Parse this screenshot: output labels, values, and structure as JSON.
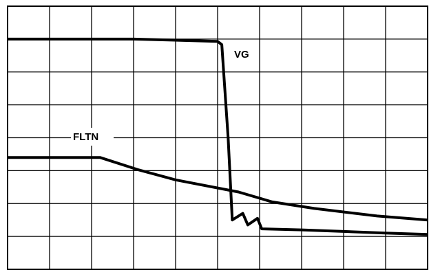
{
  "chart_data": {
    "type": "line",
    "title": "",
    "xlabel": "",
    "ylabel": "",
    "xlim": [
      0,
      10
    ],
    "ylim": [
      0,
      8
    ],
    "grid": true,
    "legend": "none",
    "series": [
      {
        "name": "VG",
        "color": "#000000",
        "points": [
          [
            0,
            7
          ],
          [
            3,
            7
          ],
          [
            5,
            6.93
          ],
          [
            5.1,
            6.83
          ],
          [
            5.25,
            4
          ],
          [
            5.35,
            1.5
          ],
          [
            5.6,
            1.7
          ],
          [
            5.72,
            1.35
          ],
          [
            5.95,
            1.55
          ],
          [
            6.05,
            1.23
          ],
          [
            7,
            1.2
          ],
          [
            8,
            1.15
          ],
          [
            9,
            1.1
          ],
          [
            10,
            1.06
          ]
        ]
      },
      {
        "name": "FLTN",
        "color": "#000000",
        "points": [
          [
            0,
            3.4
          ],
          [
            2.2,
            3.4
          ],
          [
            3.1,
            3.03
          ],
          [
            4,
            2.72
          ],
          [
            5.5,
            2.35
          ],
          [
            6.3,
            2.05
          ],
          [
            7.3,
            1.85
          ],
          [
            8.8,
            1.62
          ],
          [
            10,
            1.5
          ]
        ]
      }
    ],
    "annotations": [
      {
        "text": "VG",
        "x": 5.8,
        "y": 6.55
      },
      {
        "text": "FLTN",
        "x": 1.92,
        "y": 4.02
      }
    ]
  }
}
